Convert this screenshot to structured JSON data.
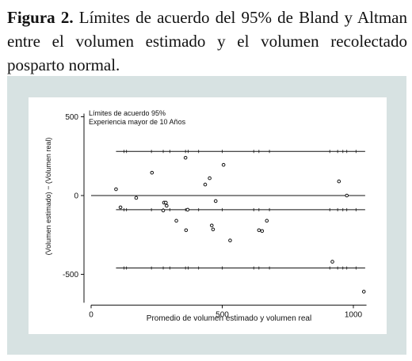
{
  "caption": {
    "label": "Figura 2.",
    "text": "Límites de acuerdo del 95% de Bland y Altman entre el volumen estimado y el volumen recolectado posparto normal."
  },
  "chart_data": {
    "type": "scatter",
    "annotation_lines": [
      "Límites de acuerdo 95%",
      "Experiencia mayor de 10 Años"
    ],
    "xlabel": "Promedio de volumen estimado y volumen real",
    "ylabel": "(Volumen estimado) − (Volumen real)",
    "xlim": [
      0,
      1050
    ],
    "ylim": [
      -640,
      510
    ],
    "xticks": [
      0,
      500,
      1000
    ],
    "xtick_labels": [
      "0",
      "500",
      "1000"
    ],
    "yticks": [
      500,
      0,
      -500
    ],
    "ytick_labels": [
      "500",
      "0",
      "-500"
    ],
    "grid": false,
    "reference_lines": [
      {
        "role": "upper-limit",
        "y": 280,
        "x_range": [
          95,
          1045
        ]
      },
      {
        "role": "zero",
        "y": 0,
        "x_range": [
          0,
          1045
        ]
      },
      {
        "role": "mean-difference",
        "y": -90,
        "x_range": [
          95,
          1045
        ]
      },
      {
        "role": "lower-limit",
        "y": -460,
        "x_range": [
          95,
          1045
        ]
      }
    ],
    "rug_ticks_x": [
      125,
      135,
      230,
      275,
      300,
      360,
      370,
      410,
      500,
      620,
      640,
      680,
      910,
      940,
      960,
      975,
      1010
    ],
    "points": [
      {
        "x": 95,
        "y": 40
      },
      {
        "x": 112,
        "y": -75
      },
      {
        "x": 172,
        "y": -15
      },
      {
        "x": 232,
        "y": 145
      },
      {
        "x": 275,
        "y": -95
      },
      {
        "x": 278,
        "y": -45
      },
      {
        "x": 285,
        "y": -45
      },
      {
        "x": 288,
        "y": -65
      },
      {
        "x": 325,
        "y": -160
      },
      {
        "x": 360,
        "y": 240
      },
      {
        "x": 362,
        "y": -220
      },
      {
        "x": 368,
        "y": -90
      },
      {
        "x": 435,
        "y": 70
      },
      {
        "x": 452,
        "y": 110
      },
      {
        "x": 460,
        "y": -190
      },
      {
        "x": 465,
        "y": -215
      },
      {
        "x": 475,
        "y": -35
      },
      {
        "x": 505,
        "y": 195
      },
      {
        "x": 530,
        "y": -285
      },
      {
        "x": 640,
        "y": -220
      },
      {
        "x": 652,
        "y": -225
      },
      {
        "x": 670,
        "y": -160
      },
      {
        "x": 920,
        "y": -420
      },
      {
        "x": 945,
        "y": 90
      },
      {
        "x": 975,
        "y": 0
      },
      {
        "x": 1040,
        "y": -610
      }
    ]
  }
}
